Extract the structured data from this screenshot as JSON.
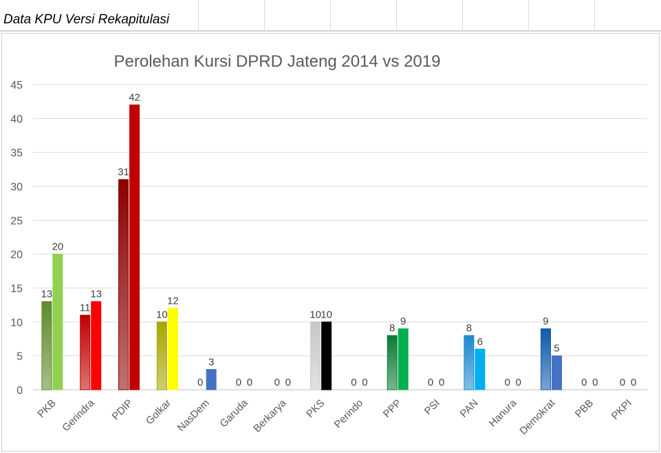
{
  "sheet": {
    "title": "Data KPU Versi Rekapitulasi"
  },
  "chart_data": {
    "type": "bar",
    "title": "Perolehan Kursi DPRD Jateng 2014 vs 2019",
    "xlabel": "",
    "ylabel": "",
    "ylim": [
      0,
      45
    ],
    "yticks": [
      0,
      5,
      10,
      15,
      20,
      25,
      30,
      35,
      40,
      45
    ],
    "grid": true,
    "legend": "none",
    "categories": [
      "PKB",
      "Gerindra",
      "PDIP",
      "Golkar",
      "NasDem",
      "Garuda",
      "Berkarya",
      "PKS",
      "Perindo",
      "PPP",
      "PSI",
      "PAN",
      "Hanura",
      "Demokrat",
      "PBB",
      "PKPI"
    ],
    "series": [
      {
        "values": [
          13,
          11,
          31,
          10,
          0,
          0,
          0,
          10,
          0,
          8,
          0,
          8,
          0,
          9,
          0,
          0
        ],
        "colors": [
          "#5e8a2c",
          "#c00000",
          "#8b0000",
          "#a6a600",
          "#5b87d4",
          "#888888",
          "#888888",
          "#c8c8c8",
          "#888888",
          "#0b7a35",
          "#888888",
          "#1e88d0",
          "#888888",
          "#0d5aa8",
          "#888888",
          "#888888"
        ]
      },
      {
        "values": [
          20,
          13,
          42,
          12,
          3,
          0,
          0,
          10,
          0,
          9,
          0,
          6,
          0,
          5,
          0,
          0
        ],
        "colors": [
          "#92d050",
          "#ff0000",
          "#c00000",
          "#ffff00",
          "#4472c4",
          "#888888",
          "#888888",
          "#000000",
          "#888888",
          "#00b050",
          "#888888",
          "#00b0f0",
          "#888888",
          "#4472c4",
          "#888888",
          "#888888"
        ]
      }
    ]
  }
}
